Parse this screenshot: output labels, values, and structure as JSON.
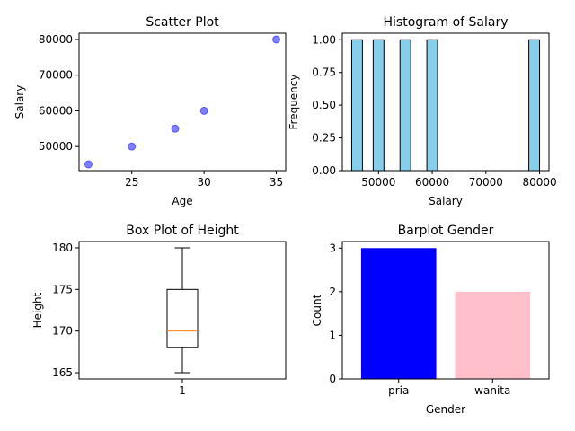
{
  "chart_data": [
    {
      "type": "scatter",
      "title": "Scatter Plot",
      "xlabel": "Age",
      "ylabel": "Salary",
      "x": [
        22,
        25,
        28,
        30,
        35
      ],
      "y": [
        45000,
        50000,
        55000,
        60000,
        80000
      ],
      "xlim": [
        21.35,
        35.65
      ],
      "ylim": [
        43250,
        81750
      ],
      "xticks": [
        25,
        30,
        35
      ],
      "yticks": [
        50000,
        60000,
        70000,
        80000
      ],
      "marker_color": "#0000ff",
      "marker_alpha": 0.5,
      "grid": false
    },
    {
      "type": "bar",
      "subtype": "histogram",
      "title": "Histogram of Salary",
      "xlabel": "Salary",
      "ylabel": "Frequency",
      "bins": [
        {
          "start": 45000,
          "end": 47000,
          "count": 1
        },
        {
          "start": 49000,
          "end": 51000,
          "count": 1
        },
        {
          "start": 54000,
          "end": 56000,
          "count": 1
        },
        {
          "start": 59000,
          "end": 61000,
          "count": 1
        },
        {
          "start": 78000,
          "end": 80000,
          "count": 1
        }
      ],
      "xlim": [
        43250,
        81750
      ],
      "ylim": [
        0,
        1.05
      ],
      "xticks": [
        50000,
        60000,
        70000,
        80000
      ],
      "yticks": [
        0.0,
        0.25,
        0.5,
        0.75,
        1.0
      ],
      "ytick_labels": [
        "0.00",
        "0.25",
        "0.50",
        "0.75",
        "1.00"
      ],
      "bar_color": "#87ceeb",
      "edge_color": "#000000",
      "grid": false
    },
    {
      "type": "box",
      "title": "Box Plot of Height",
      "xlabel": "",
      "ylabel": "Height",
      "categories": [
        "1"
      ],
      "box": {
        "whisker_low": 165,
        "q1": 168,
        "median": 170,
        "q3": 175,
        "whisker_high": 180
      },
      "xlim": [
        0.5,
        1.5
      ],
      "ylim": [
        164.25,
        180.75
      ],
      "yticks": [
        165,
        170,
        175,
        180
      ],
      "median_color": "#ff7f0e",
      "grid": false
    },
    {
      "type": "bar",
      "title": "Barplot Gender",
      "xlabel": "Gender",
      "ylabel": "Count",
      "categories": [
        "pria",
        "wanita"
      ],
      "values": [
        3,
        2
      ],
      "colors": [
        "#0000ff",
        "#ffc0cb"
      ],
      "ylim": [
        0,
        3.15
      ],
      "yticks": [
        0,
        1,
        2,
        3
      ],
      "grid": false
    }
  ]
}
